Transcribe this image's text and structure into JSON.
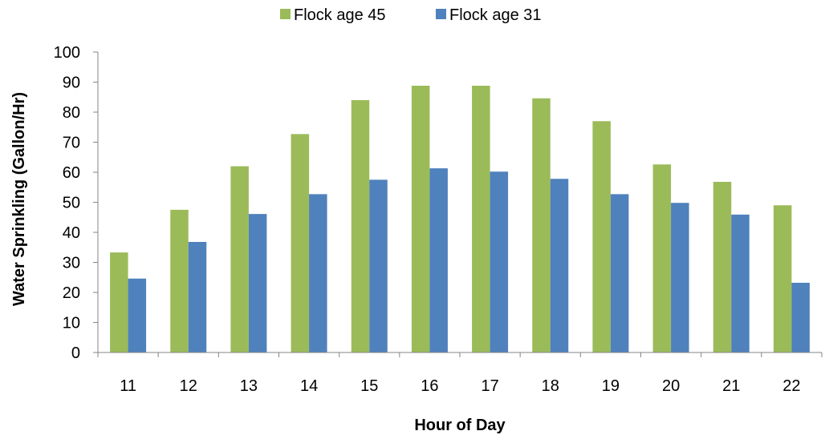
{
  "chart_data": {
    "type": "bar",
    "categories": [
      "11",
      "12",
      "13",
      "14",
      "15",
      "16",
      "17",
      "18",
      "19",
      "20",
      "21",
      "22"
    ],
    "series": [
      {
        "name": "Flock age 45",
        "color": "#9BBB59",
        "values": [
          33.3,
          47.5,
          62,
          72.7,
          84,
          88.8,
          88.8,
          84.6,
          77,
          62.6,
          56.8,
          49
        ]
      },
      {
        "name": "Flock age 31",
        "color": "#4F81BD",
        "values": [
          24.6,
          36.8,
          46.1,
          52.7,
          57.5,
          61.3,
          60.2,
          57.8,
          52.7,
          49.8,
          45.9,
          23.2
        ]
      }
    ],
    "xlabel": "Hour of Day",
    "ylabel": "Water Sprinkling (Gallon/Hr)",
    "ylim": [
      0,
      100
    ],
    "yticks": [
      "0",
      "10",
      "20",
      "30",
      "40",
      "50",
      "60",
      "70",
      "80",
      "90",
      "100"
    ],
    "grid": false,
    "legend_position": "top"
  }
}
